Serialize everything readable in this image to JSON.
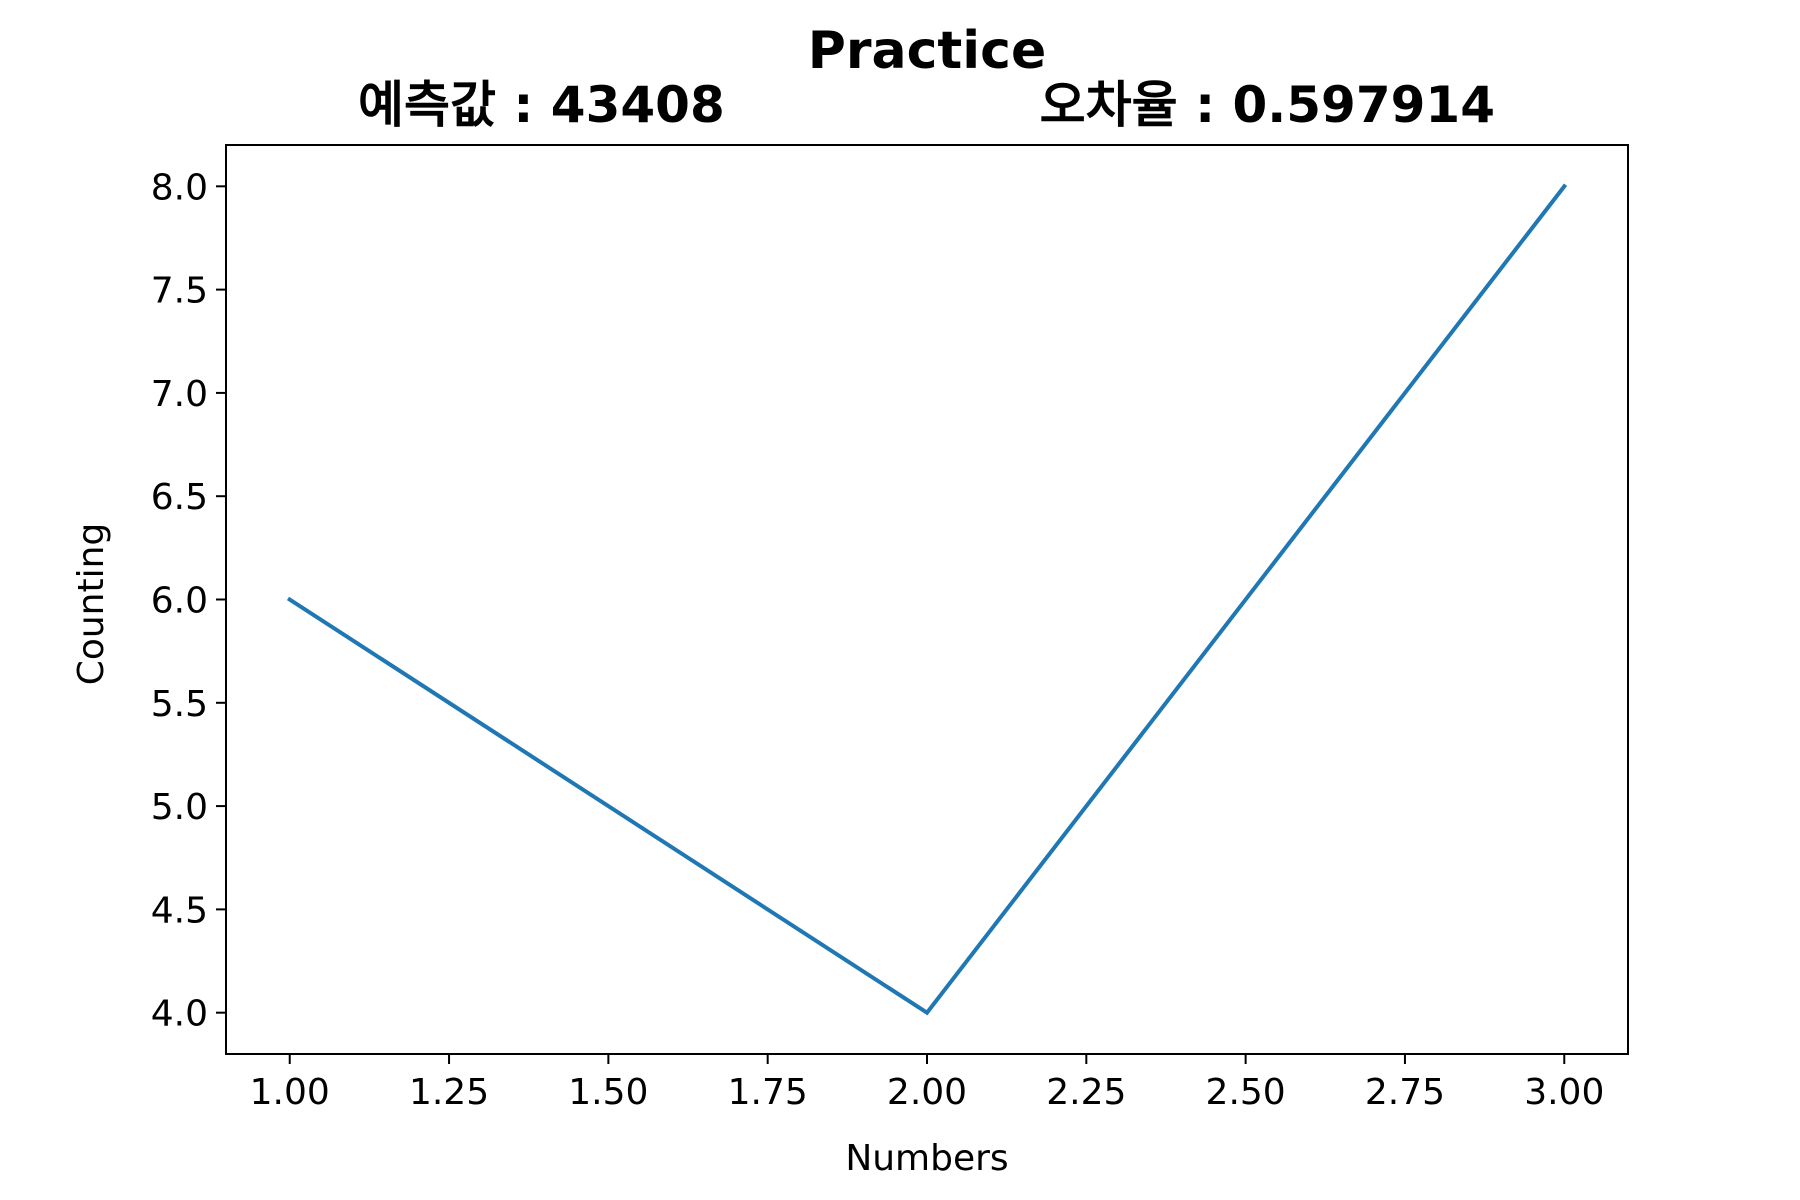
{
  "chart_data": {
    "type": "line",
    "title": "Practice",
    "subtitle_left": "예측값 : 43408",
    "subtitle_right": "오차율 : 0.597914",
    "xlabel": "Numbers",
    "ylabel": "Counting",
    "x": [
      1.0,
      2.0,
      3.0
    ],
    "series": [
      {
        "values": [
          6.0,
          4.0,
          8.0
        ],
        "color": "#1f77b4"
      }
    ],
    "xlim": [
      0.9,
      3.1
    ],
    "ylim": [
      3.8,
      8.2
    ],
    "xticks": [
      1.0,
      1.25,
      1.5,
      1.75,
      2.0,
      2.25,
      2.5,
      2.75,
      3.0
    ],
    "xtick_labels": [
      "1.00",
      "1.25",
      "1.50",
      "1.75",
      "2.00",
      "2.25",
      "2.50",
      "2.75",
      "3.00"
    ],
    "yticks": [
      4.0,
      4.5,
      5.0,
      5.5,
      6.0,
      6.5,
      7.0,
      7.5,
      8.0
    ],
    "ytick_labels": [
      "4.0",
      "4.5",
      "5.0",
      "5.5",
      "6.0",
      "6.5",
      "7.0",
      "7.5",
      "8.0"
    ],
    "grid": false,
    "legend": false
  }
}
